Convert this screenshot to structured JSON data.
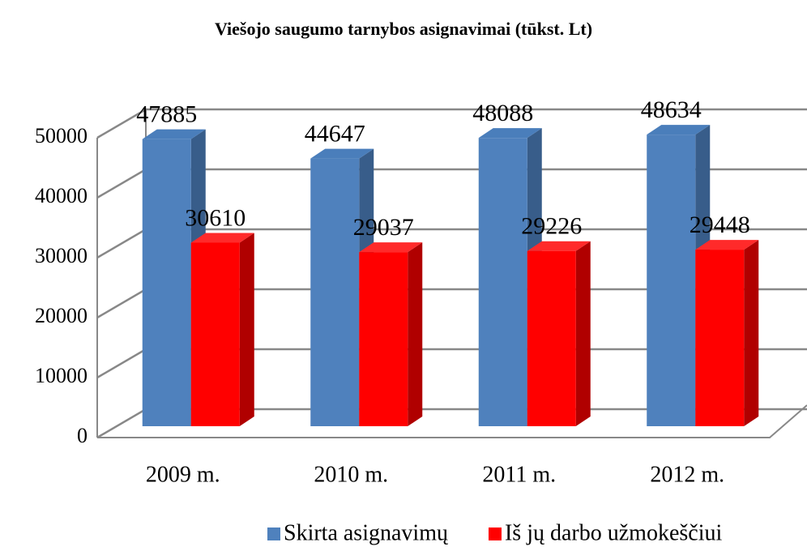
{
  "chart_data": {
    "type": "bar3d",
    "title": "Viešojo saugumo tarnybos asignavimai (tūkst. Lt)",
    "categories": [
      "2009 m.",
      "2010 m.",
      "2011 m.",
      "2012 m."
    ],
    "series": [
      {
        "name": "Skirta asignavimų",
        "color": "#4f81bd",
        "values": [
          47885,
          44647,
          48088,
          48634
        ]
      },
      {
        "name": "Iš jų darbo užmokeščiui",
        "color": "#ff0000",
        "values": [
          30610,
          29037,
          29226,
          29448
        ]
      }
    ],
    "ylim": [
      0,
      50000
    ],
    "yticks": [
      0,
      10000,
      20000,
      30000,
      40000,
      50000
    ],
    "grid": true,
    "legend": "bottom"
  }
}
